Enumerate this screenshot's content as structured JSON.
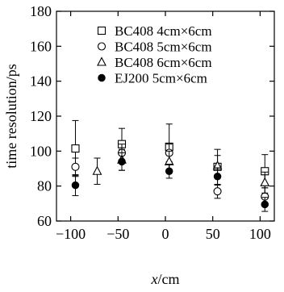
{
  "chart_data": {
    "type": "scatter",
    "title": "",
    "xlabel": "x/cm",
    "ylabel": "time resolution/ps",
    "xlim": [
      -115,
      115
    ],
    "ylim": [
      60,
      180
    ],
    "xticks": [
      -100,
      -50,
      0,
      50,
      100
    ],
    "xtick_labels": [
      "−100",
      "−50",
      "0",
      "50",
      "100"
    ],
    "yticks": [
      60,
      80,
      100,
      120,
      140,
      160,
      180
    ],
    "ytick_labels": [
      "60",
      "80",
      "100",
      "120",
      "140",
      "160",
      "180"
    ],
    "grid": false,
    "legend_position": "top-right",
    "series": [
      {
        "name": "BC408 4cm×6cm",
        "marker": "open-square",
        "points": [
          {
            "x": -95,
            "y": 101.5,
            "err": 16
          },
          {
            "x": -46,
            "y": 104,
            "err": 9
          },
          {
            "x": 4,
            "y": 102.5,
            "err": 13
          },
          {
            "x": 55,
            "y": 91,
            "err": 10
          },
          {
            "x": 105,
            "y": 88.5,
            "err": 9.5
          }
        ]
      },
      {
        "name": "BC408 5cm×6cm",
        "marker": "open-circle",
        "points": [
          {
            "x": -95,
            "y": 91,
            "err": 5
          },
          {
            "x": -46,
            "y": 99,
            "err": 5
          },
          {
            "x": 4,
            "y": 99,
            "err": 5
          },
          {
            "x": 55,
            "y": 77,
            "err": 4
          },
          {
            "x": 105,
            "y": 74,
            "err": 5
          }
        ]
      },
      {
        "name": "BC408 6cm×6cm",
        "marker": "open-triangle",
        "points": [
          {
            "x": -72,
            "y": 88.5,
            "err": 7.5
          },
          {
            "x": -46,
            "y": 95,
            "err": 6
          },
          {
            "x": 4,
            "y": 94,
            "err": 6
          },
          {
            "x": 55,
            "y": 91.5,
            "err": 6
          },
          {
            "x": 105,
            "y": 82,
            "err": 6
          }
        ]
      },
      {
        "name": "EJ200 5cm×6cm",
        "marker": "filled-circle",
        "points": [
          {
            "x": -95,
            "y": 80.5,
            "err": 6
          },
          {
            "x": -46,
            "y": 94,
            "err": 5
          },
          {
            "x": 4,
            "y": 88.5,
            "err": 4
          },
          {
            "x": 55,
            "y": 85.5,
            "err": 5
          },
          {
            "x": 105,
            "y": 69.5,
            "err": 4
          }
        ]
      }
    ]
  }
}
